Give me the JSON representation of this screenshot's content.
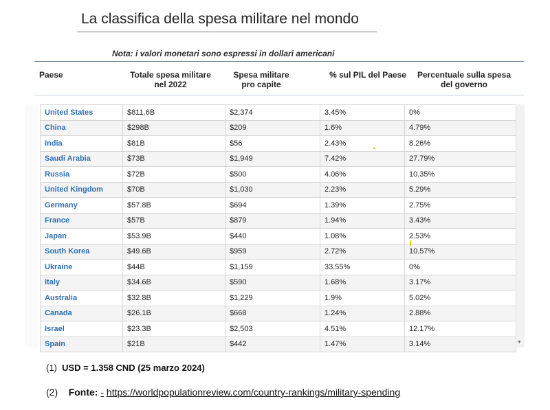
{
  "title": "La classifica della spesa militare nel mondo",
  "note": "Nota: i valori monetari sono espressi in dollari americani",
  "headers": {
    "country": "Paese",
    "total_1": "Totale spesa militare",
    "total_2": "nel 2022",
    "percap_1": "Spesa militare",
    "percap_2": "pro capite",
    "gdp": "% sul PIL del Paese",
    "gov_1": "Percentuale sulla spesa",
    "gov_2": "del governo"
  },
  "rows": [
    {
      "country": "United States",
      "total": "$811.6B",
      "per_capita": "$2,374",
      "gdp": "3.45%",
      "gov": "0%"
    },
    {
      "country": "China",
      "total": "$298B",
      "per_capita": "$209",
      "gdp": "1.6%",
      "gov": "4.79%"
    },
    {
      "country": "India",
      "total": "$81B",
      "per_capita": "$56",
      "gdp": "2.43%",
      "gov": "8.26%"
    },
    {
      "country": "Saudi Arabia",
      "total": "$73B",
      "per_capita": "$1,949",
      "gdp": "7.42%",
      "gov": "27.79%"
    },
    {
      "country": "Russia",
      "total": "$72B",
      "per_capita": "$500",
      "gdp": "4.06%",
      "gov": "10.35%"
    },
    {
      "country": "United Kingdom",
      "total": "$70B",
      "per_capita": "$1,030",
      "gdp": "2.23%",
      "gov": "5.29%"
    },
    {
      "country": "Germany",
      "total": "$57.8B",
      "per_capita": "$694",
      "gdp": "1.39%",
      "gov": "2.75%"
    },
    {
      "country": "France",
      "total": "$57B",
      "per_capita": "$879",
      "gdp": "1.94%",
      "gov": "3.43%"
    },
    {
      "country": "Japan",
      "total": "$53.9B",
      "per_capita": "$440",
      "gdp": "1.08%",
      "gov": "2.53%"
    },
    {
      "country": "South Korea",
      "total": "$49.6B",
      "per_capita": "$959",
      "gdp": "2.72%",
      "gov": "10.57%"
    },
    {
      "country": "Ukraine",
      "total": "$44B",
      "per_capita": "$1,159",
      "gdp": "33.55%",
      "gov": "0%"
    },
    {
      "country": "Italy",
      "total": "$34.6B",
      "per_capita": "$590",
      "gdp": "1.68%",
      "gov": "3.17%"
    },
    {
      "country": "Australia",
      "total": "$32.8B",
      "per_capita": "$1,229",
      "gdp": "1.9%",
      "gov": "5.02%"
    },
    {
      "country": "Canada",
      "total": "$26.1B",
      "per_capita": "$668",
      "gdp": "1.24%",
      "gov": "2.88%"
    },
    {
      "country": "Israel",
      "total": "$23.3B",
      "per_capita": "$2,503",
      "gdp": "4.51%",
      "gov": "12.17%"
    },
    {
      "country": "Spain",
      "total": "$21B",
      "per_capita": "$442",
      "gdp": "1.47%",
      "gov": "3.14%"
    }
  ],
  "footnotes": {
    "fn1_num": "(1)",
    "fn1_text": "USD = 1.358 CND (25 marzo 2024)",
    "fn2_num": "(2)",
    "fn2_label": "Fonte:",
    "fn2_dash": "-",
    "fn2_link": "https://worldpopulationreview.com/country-rankings/military-spending"
  },
  "colors": {
    "country_link": "#2e6fb0",
    "row_alt": "#f4f4f4",
    "border": "#d6d6d6"
  }
}
